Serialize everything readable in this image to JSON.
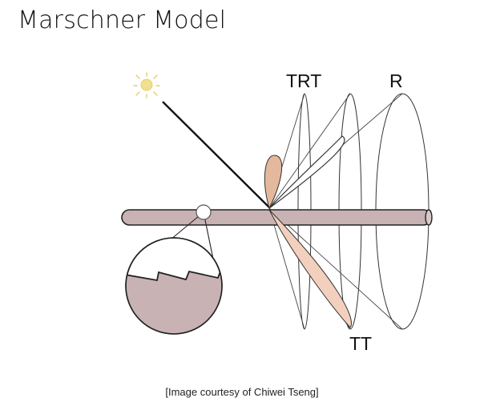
{
  "title": "Marschner Model",
  "labels": {
    "trt": "TRT",
    "r": "R",
    "tt": "TT"
  },
  "caption": "[Image courtesy of Chiwei Tseng]",
  "colors": {
    "hair": "#c8b2b3",
    "lobe_r": "#ffffff",
    "lobe_trt": "#e4b89c",
    "lobe_tt": "#f3d0be",
    "sun": "#f2df91"
  },
  "icons": [
    "sun-icon"
  ]
}
